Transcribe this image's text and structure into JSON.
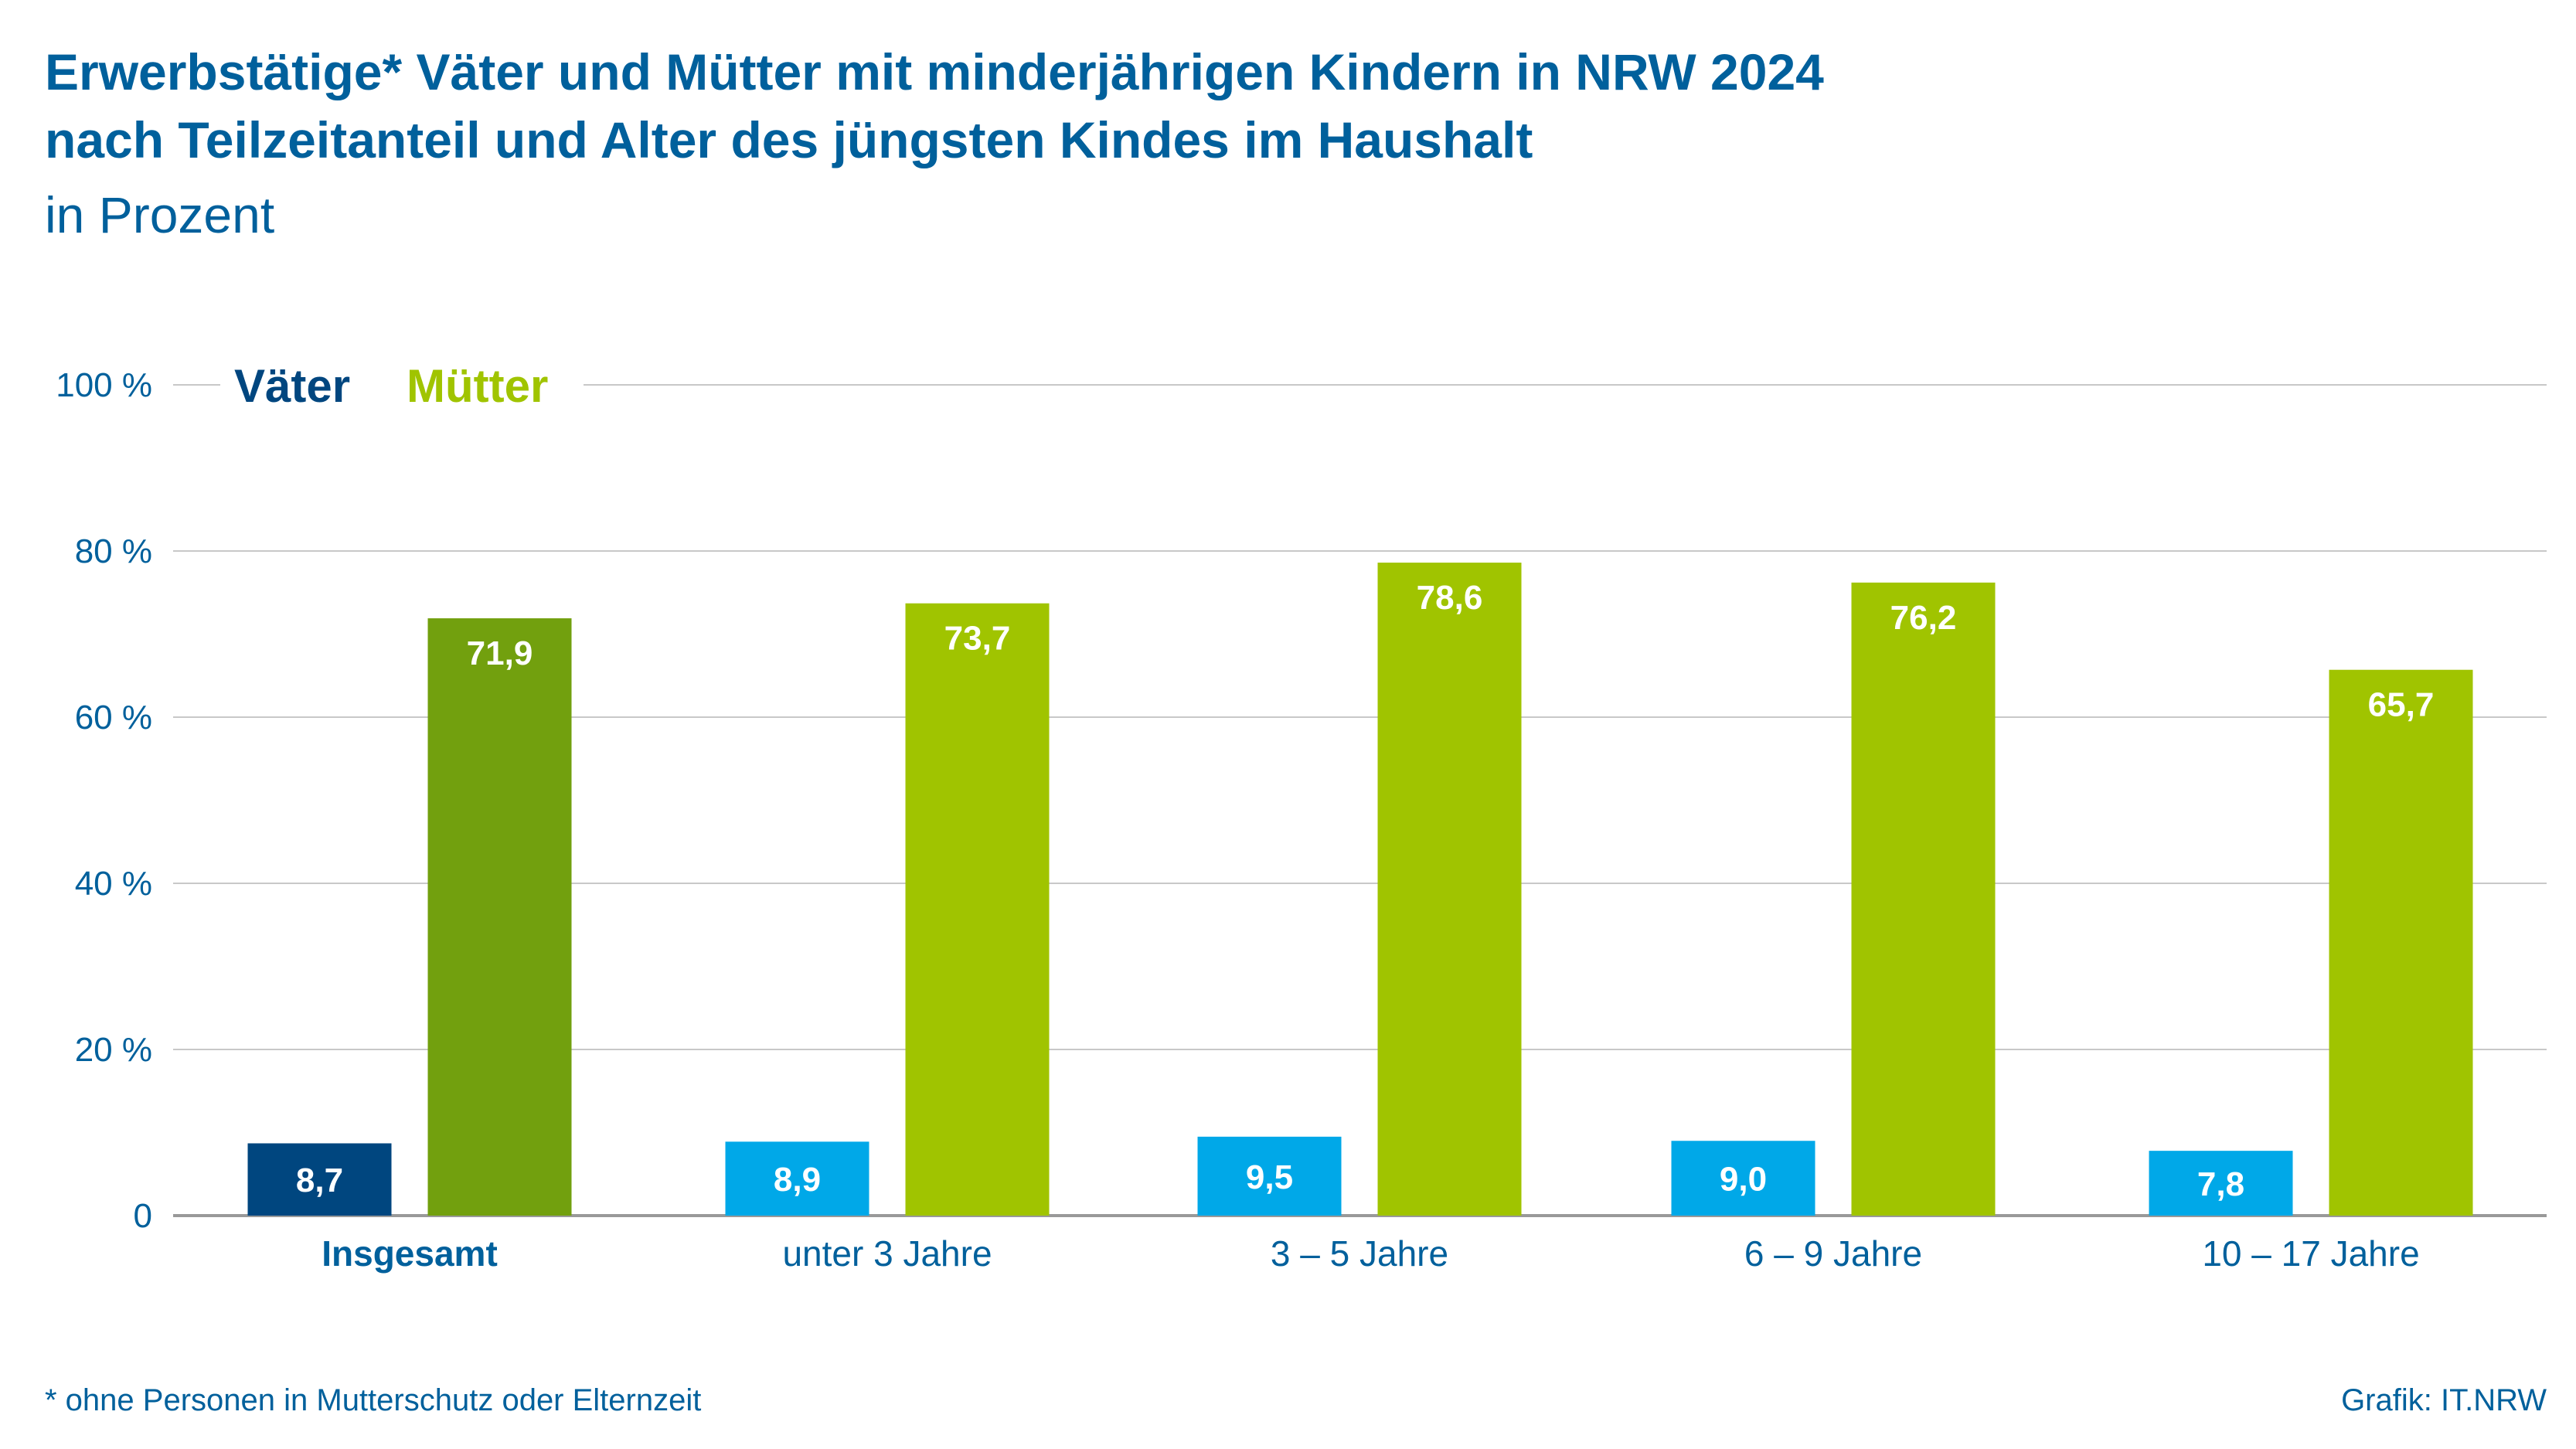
{
  "title_line1": "Erwerbstätige* Väter und Mütter mit minderjährigen Kindern in NRW 2024",
  "title_line2": "nach Teilzeitanteil und Alter des jüngsten Kindes im Haushalt",
  "subtitle": "in Prozent",
  "footnote": "*  ohne Personen in Mutterschutz oder Elternzeit",
  "source": "Grafik: IT.NRW",
  "colors": {
    "text": "#00609c",
    "vaeter_total": "#00467f",
    "vaeter": "#00a8e8",
    "muetter_total": "#72a00e",
    "muetter": "#a0c400",
    "grid": "#c8c8c8"
  },
  "chart_data": {
    "type": "bar",
    "title": "Erwerbstätige* Väter und Mütter mit minderjährigen Kindern in NRW 2024 nach Teilzeitanteil und Alter des jüngsten Kindes im Haushalt",
    "subtitle": "in Prozent",
    "categories": [
      "Insgesamt",
      "unter 3 Jahre",
      "3 – 5 Jahre",
      "6 – 9 Jahre",
      "10 – 17 Jahre"
    ],
    "series": [
      {
        "name": "Väter",
        "values": [
          8.7,
          8.9,
          9.5,
          9.0,
          7.8
        ],
        "labels": [
          "8,7",
          "8,9",
          "9,5",
          "9,0",
          "7,8"
        ]
      },
      {
        "name": "Mütter",
        "values": [
          71.9,
          73.7,
          78.6,
          76.2,
          65.7
        ],
        "labels": [
          "71,9",
          "73,7",
          "78,6",
          "76,2",
          "65,7"
        ]
      }
    ],
    "yticks": [
      0,
      20,
      40,
      60,
      80,
      100
    ],
    "ytick_labels": [
      "0",
      "20 %",
      "40 %",
      "60 %",
      "80 %",
      "100 %"
    ],
    "ylim": [
      0,
      100
    ],
    "grid": true,
    "legend": "top-left"
  }
}
